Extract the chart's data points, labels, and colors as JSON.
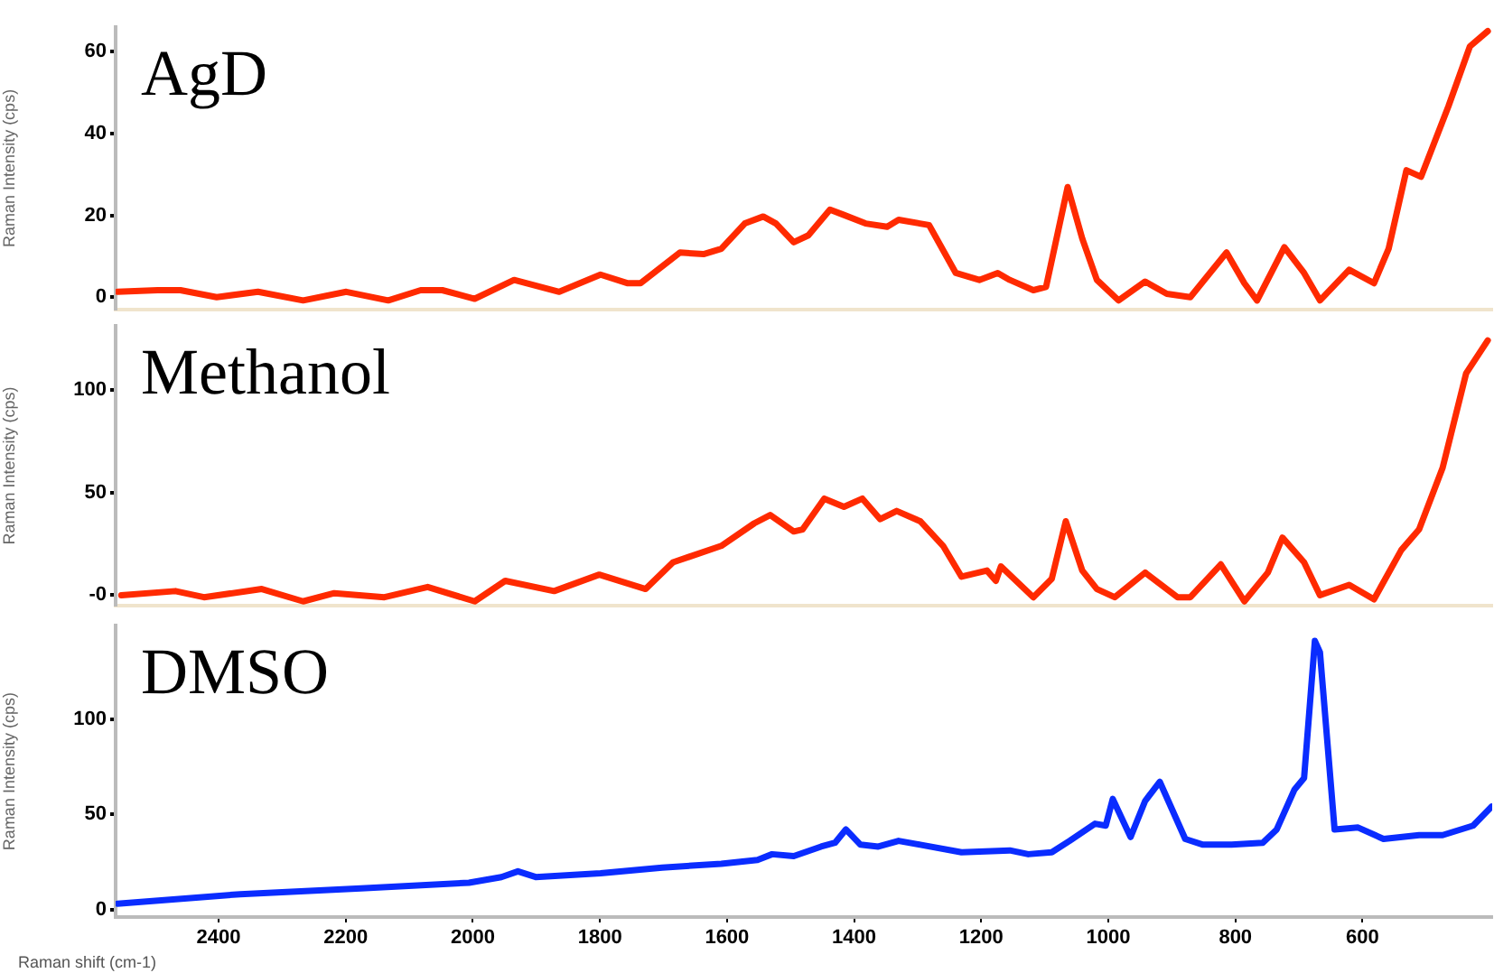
{
  "chart_data": [
    {
      "type": "line",
      "ylabel": "Raman Intensity (cps)",
      "annotations": [
        "AgD"
      ],
      "tick_labels": "y",
      "xlim": [
        2562,
        396
      ],
      "xticks": [
        2400,
        2200,
        2000,
        1800,
        1600,
        1400,
        1200,
        1000,
        800,
        600
      ],
      "ylim": [
        -3,
        66
      ],
      "yticks": [
        0,
        20,
        40,
        60
      ],
      "x": [
        2559,
        2496,
        2460,
        2403,
        2338,
        2267,
        2199,
        2133,
        2082,
        2048,
        1997,
        1935,
        1864,
        1799,
        1756,
        1736,
        1674,
        1637,
        1609,
        1572,
        1543,
        1523,
        1495,
        1472,
        1438,
        1418,
        1382,
        1348,
        1330,
        1282,
        1240,
        1203,
        1174,
        1155,
        1118,
        1098,
        1064,
        1041,
        1018,
        984,
        942,
        908,
        871,
        814,
        786,
        766,
        723,
        692,
        667,
        621,
        582,
        559,
        531,
        508,
        465,
        431,
        403
      ],
      "series": [
        {
          "color": "#ff2a00",
          "values": [
            1.3,
            1.7,
            1.7,
            0,
            1.3,
            -0.8,
            1.3,
            -0.8,
            1.7,
            1.7,
            -0.4,
            4.2,
            1.3,
            5.5,
            3.4,
            3.4,
            10.9,
            10.5,
            11.8,
            18,
            19.7,
            18,
            13.4,
            15.1,
            21.4,
            20.2,
            18,
            17.2,
            18.9,
            17.6,
            5.9,
            4.2,
            5.9,
            4.2,
            1.7,
            2.5,
            26.9,
            14.3,
            4.2,
            -0.8,
            3.8,
            0.8,
            0,
            10.9,
            3.4,
            -0.8,
            12.2,
            5.9,
            -0.8,
            6.7,
            3.4,
            11.8,
            31,
            29.4,
            46.6,
            61.3,
            65
          ]
        }
      ]
    },
    {
      "type": "line",
      "ylabel": "Raman Intensity (cps)",
      "annotations": [
        "Methanol"
      ],
      "tick_labels": "y",
      "xlim": [
        2562,
        396
      ],
      "xticks": [
        2400,
        2200,
        2000,
        1800,
        1600,
        1400,
        1200,
        1000,
        800,
        600
      ],
      "ylim": [
        -5,
        131
      ],
      "yticks": [
        {
          "value": 0,
          "label": "-0"
        },
        50,
        100
      ],
      "x": [
        2553,
        2468,
        2423,
        2332,
        2267,
        2218,
        2139,
        2071,
        1997,
        1949,
        1872,
        1801,
        1728,
        1685,
        1609,
        1557,
        1532,
        1495,
        1481,
        1447,
        1416,
        1387,
        1359,
        1333,
        1296,
        1260,
        1231,
        1191,
        1177,
        1169,
        1118,
        1089,
        1067,
        1041,
        1018,
        990,
        942,
        891,
        871,
        823,
        786,
        749,
        726,
        692,
        667,
        621,
        582,
        539,
        511,
        474,
        437,
        403
      ],
      "series": [
        {
          "color": "#ff2a00",
          "values": [
            0,
            2,
            -1,
            3,
            -3,
            1,
            -1,
            4,
            -3,
            7,
            2,
            10,
            3,
            16,
            24,
            35,
            39,
            31,
            32,
            47,
            43,
            47,
            37,
            41,
            36,
            24,
            9,
            12,
            7,
            14,
            -1,
            8,
            36,
            12,
            3,
            -1,
            11,
            -1,
            -1,
            15,
            -3,
            11,
            28,
            16,
            0,
            5,
            -2,
            22,
            32,
            62,
            108,
            124
          ]
        }
      ]
    },
    {
      "type": "line",
      "ylabel": "Raman Intensity (cps)",
      "xlabel": "Raman shift (cm-1)",
      "annotations": [
        "DMSO"
      ],
      "xlim": [
        2562,
        396
      ],
      "xticks": [
        2400,
        2200,
        2000,
        1800,
        1600,
        1400,
        1200,
        1000,
        800,
        600
      ],
      "ylim": [
        -4,
        149
      ],
      "yticks": [
        0,
        50,
        100
      ],
      "x": [
        2559,
        2366,
        2176,
        2006,
        1955,
        1929,
        1901,
        1799,
        1702,
        1609,
        1552,
        1529,
        1495,
        1452,
        1430,
        1413,
        1390,
        1362,
        1330,
        1296,
        1231,
        1155,
        1126,
        1089,
        1061,
        1021,
        1004,
        993,
        965,
        942,
        919,
        879,
        851,
        806,
        757,
        735,
        707,
        692,
        675,
        667,
        644,
        607,
        567,
        511,
        474,
        426,
        397
      ],
      "series": [
        {
          "color": "#0a2cff",
          "values": [
            3,
            8,
            11,
            14,
            17,
            20,
            17,
            19,
            22,
            24,
            26,
            29,
            28,
            33,
            35,
            42,
            34,
            33,
            36,
            34,
            30,
            31,
            29,
            30,
            36,
            45,
            44,
            58,
            38,
            57,
            67,
            37,
            34,
            34,
            35,
            42,
            63,
            69,
            141,
            135,
            42,
            43,
            37,
            39,
            39,
            44,
            54
          ]
        }
      ]
    }
  ]
}
